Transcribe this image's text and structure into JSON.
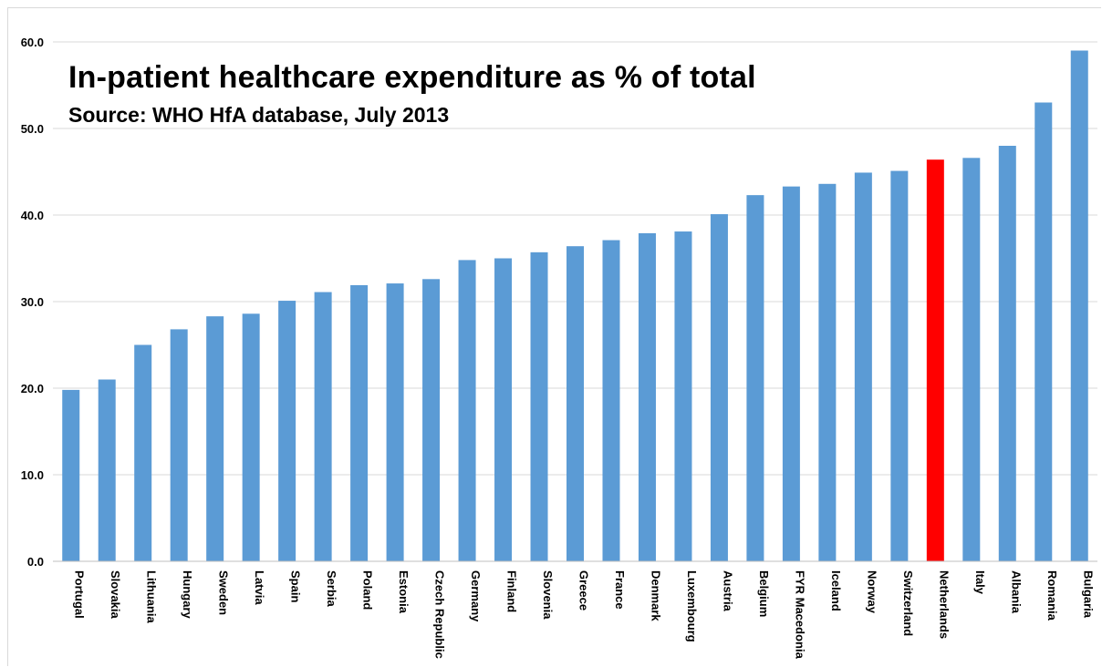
{
  "chart_data": {
    "type": "bar",
    "title": "In-patient healthcare expenditure as % of total",
    "subtitle": "Source: WHO HfA database, July 2013",
    "xlabel": "",
    "ylabel": "",
    "ylim": [
      0,
      60
    ],
    "yticks": [
      "0.0",
      "10.0",
      "20.0",
      "30.0",
      "40.0",
      "50.0",
      "60.0"
    ],
    "ytick_values": [
      0,
      10,
      20,
      30,
      40,
      50,
      60
    ],
    "grid": true,
    "legend": "none",
    "bar_color": "#5b9bd5",
    "highlight_color": "#ff0000",
    "highlight_category": "Netherlands",
    "categories": [
      "Portugal",
      "Slovakia",
      "Lithuania",
      "Hungary",
      "Sweden",
      "Latvia",
      "Spain",
      "Serbia",
      "Poland",
      "Estonia",
      "Czech Republic",
      "Germany",
      "Finland",
      "Slovenia",
      "Greece",
      "France",
      "Denmark",
      "Luxembourg",
      "Austria",
      "Belgium",
      "FYR Macedonia",
      "Iceland",
      "Norway",
      "Switzerland",
      "Netherlands",
      "Italy",
      "Albania",
      "Romania",
      "Bulgaria"
    ],
    "values": [
      19.8,
      21.0,
      25.0,
      26.8,
      28.3,
      28.6,
      30.1,
      31.1,
      31.9,
      32.1,
      32.6,
      34.8,
      35.0,
      35.7,
      36.4,
      37.1,
      37.9,
      38.1,
      40.1,
      42.3,
      43.3,
      43.6,
      44.9,
      45.1,
      46.4,
      46.6,
      48.0,
      53.0,
      59.0
    ]
  }
}
